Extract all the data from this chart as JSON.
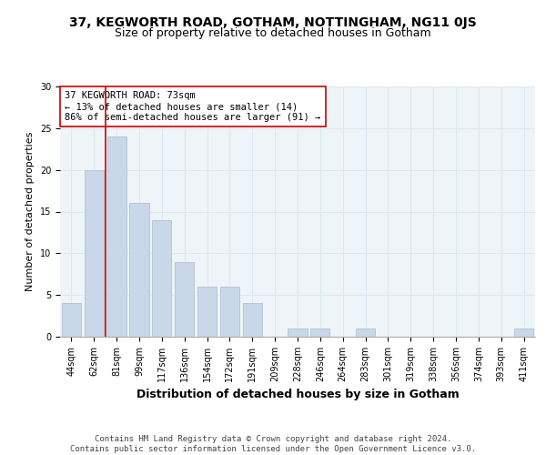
{
  "title1": "37, KEGWORTH ROAD, GOTHAM, NOTTINGHAM, NG11 0JS",
  "title2": "Size of property relative to detached houses in Gotham",
  "xlabel": "Distribution of detached houses by size in Gotham",
  "ylabel": "Number of detached properties",
  "categories": [
    "44sqm",
    "62sqm",
    "81sqm",
    "99sqm",
    "117sqm",
    "136sqm",
    "154sqm",
    "172sqm",
    "191sqm",
    "209sqm",
    "228sqm",
    "246sqm",
    "264sqm",
    "283sqm",
    "301sqm",
    "319sqm",
    "338sqm",
    "356sqm",
    "374sqm",
    "393sqm",
    "411sqm"
  ],
  "values": [
    4,
    20,
    24,
    16,
    14,
    9,
    6,
    6,
    4,
    0,
    1,
    1,
    0,
    1,
    0,
    0,
    0,
    0,
    0,
    0,
    1
  ],
  "bar_color": "#c8d8e8",
  "bar_edgecolor": "#aabbcc",
  "vline_color": "#cc0000",
  "annotation_text": "37 KEGWORTH ROAD: 73sqm\n← 13% of detached houses are smaller (14)\n86% of semi-detached houses are larger (91) →",
  "annotation_box_edgecolor": "#cc0000",
  "annotation_box_facecolor": "#ffffff",
  "ylim": [
    0,
    30
  ],
  "yticks": [
    0,
    5,
    10,
    15,
    20,
    25,
    30
  ],
  "grid_color": "#dde8f0",
  "background_color": "#eef4f8",
  "footer_text": "Contains HM Land Registry data © Crown copyright and database right 2024.\nContains public sector information licensed under the Open Government Licence v3.0.",
  "title1_fontsize": 10,
  "title2_fontsize": 9,
  "xlabel_fontsize": 9,
  "ylabel_fontsize": 8,
  "tick_fontsize": 7,
  "annotation_fontsize": 7.5,
  "footer_fontsize": 6.5
}
